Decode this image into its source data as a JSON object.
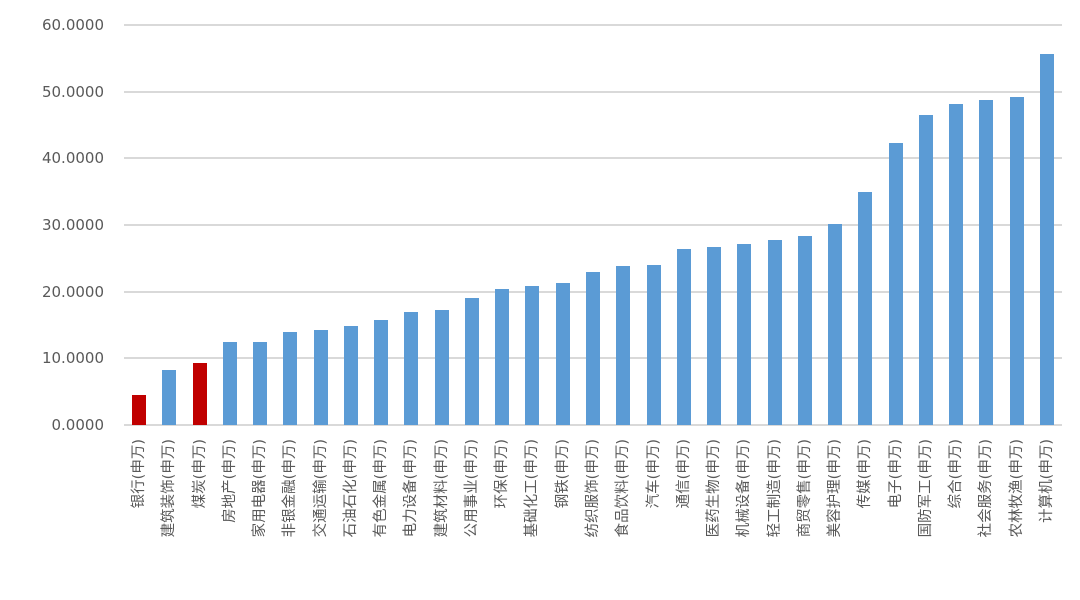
{
  "chart_data": {
    "type": "bar",
    "title": "",
    "xlabel": "",
    "ylabel": "",
    "categories": [
      "银行(申万)",
      "建筑装饰(申万)",
      "煤炭(申万)",
      "房地产(申万)",
      "家用电器(申万)",
      "非银金融(申万)",
      "交通运输(申万)",
      "石油石化(申万)",
      "有色金属(申万)",
      "电力设备(申万)",
      "建筑材料(申万)",
      "公用事业(申万)",
      "环保(申万)",
      "基础化工(申万)",
      "钢铁(申万)",
      "纺织服饰(申万)",
      "食品饮料(申万)",
      "汽车(申万)",
      "通信(申万)",
      "医药生物(申万)",
      "机械设备(申万)",
      "轻工制造(申万)",
      "商贸零售(申万)",
      "美容护理(申万)",
      "传媒(申万)",
      "电子(申万)",
      "国防军工(申万)",
      "综合(申万)",
      "社会服务(申万)",
      "农林牧渔(申万)",
      "计算机(申万)"
    ],
    "values": [
      4.5,
      8.3,
      9.3,
      12.4,
      12.5,
      14.0,
      14.2,
      14.9,
      15.7,
      16.9,
      17.3,
      19.1,
      20.4,
      20.9,
      21.3,
      23.0,
      23.8,
      24.0,
      26.4,
      26.7,
      27.1,
      27.7,
      28.4,
      30.2,
      35.0,
      42.3,
      46.5,
      48.2,
      48.7,
      49.2,
      55.7
    ],
    "highlighted_indices": [
      0,
      2
    ],
    "y_ticks": [
      "0.0000",
      "10.0000",
      "20.0000",
      "30.0000",
      "40.0000",
      "50.0000",
      "60.0000"
    ],
    "ylim": [
      0,
      60
    ],
    "y_tick_step": 10,
    "grid": true,
    "legend": "none",
    "colors": {
      "bar": "#5B9BD5",
      "highlight": "#C00000",
      "gridline": "#D9D9D9",
      "text": "#595959",
      "background": "#FFFFFF"
    }
  }
}
